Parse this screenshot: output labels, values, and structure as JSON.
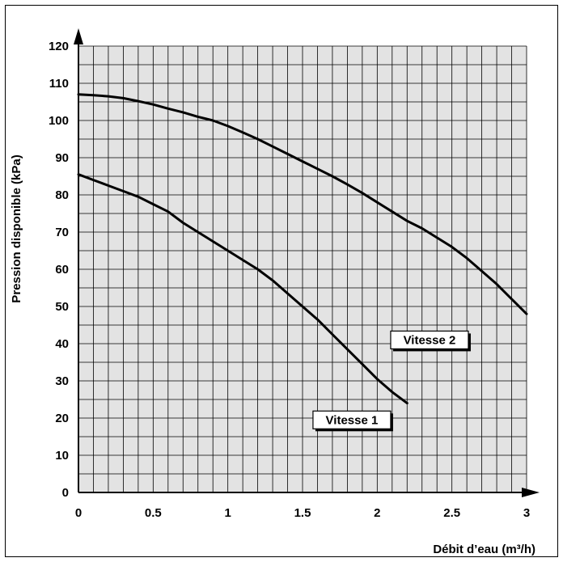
{
  "chart_data": {
    "type": "line",
    "title": "",
    "xlabel": "Débit d’eau (m³/h)",
    "ylabel": "Pression disponible (kPa)",
    "xlim": [
      0,
      3
    ],
    "ylim": [
      0,
      120
    ],
    "x_ticks": [
      "0",
      "0.5",
      "1",
      "1.5",
      "2",
      "2.5",
      "3"
    ],
    "y_ticks": [
      "0",
      "10",
      "20",
      "30",
      "40",
      "50",
      "60",
      "70",
      "80",
      "90",
      "100",
      "110",
      "120"
    ],
    "grid": true,
    "grid_minor_x": 0.1,
    "grid_minor_y": 5,
    "colors": {
      "grid_fill": "#e3e3e3",
      "grid_line": "#000000",
      "curve": "#000000"
    },
    "series": [
      {
        "name": "Vitesse 1",
        "x": [
          0,
          0.1,
          0.2,
          0.3,
          0.4,
          0.5,
          0.6,
          0.7,
          0.8,
          0.9,
          1.0,
          1.1,
          1.2,
          1.3,
          1.4,
          1.5,
          1.6,
          1.7,
          1.8,
          1.9,
          2.0,
          2.1,
          2.2
        ],
        "values": [
          85.5,
          84,
          82.5,
          81,
          79.5,
          77.5,
          75.5,
          72.5,
          70,
          67.5,
          65,
          62.5,
          60,
          57,
          53.5,
          50,
          46.5,
          42.5,
          38.5,
          34.5,
          30.5,
          27,
          24
        ]
      },
      {
        "name": "Vitesse 2",
        "x": [
          0,
          0.1,
          0.2,
          0.3,
          0.4,
          0.5,
          0.6,
          0.7,
          0.8,
          0.9,
          1.0,
          1.1,
          1.2,
          1.3,
          1.4,
          1.5,
          1.6,
          1.7,
          1.8,
          1.9,
          2.0,
          2.1,
          2.2,
          2.3,
          2.4,
          2.5,
          2.6,
          2.7,
          2.8,
          2.9,
          3.0
        ],
        "values": [
          107,
          106.8,
          106.5,
          106,
          105.2,
          104.3,
          103.2,
          102.2,
          101,
          100,
          98.5,
          96.8,
          95,
          93,
          91,
          89,
          87,
          85,
          82.8,
          80.5,
          78,
          75.5,
          73,
          71,
          68.5,
          66,
          63,
          59.5,
          56,
          52,
          48
        ]
      }
    ],
    "annotations": [
      {
        "text": "Vitesse 2",
        "x": 2.35,
        "y": 41,
        "series": "Vitesse 2"
      },
      {
        "text": "Vitesse 1",
        "x": 1.83,
        "y": 19.5,
        "series": "Vitesse 1"
      }
    ]
  }
}
